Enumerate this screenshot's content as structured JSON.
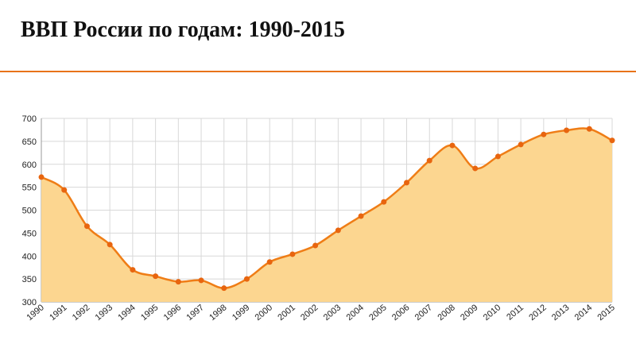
{
  "chart_data": {
    "type": "area",
    "title": "ВВП России по годам: 1990-2015",
    "categories": [
      "1990",
      "1991",
      "1992",
      "1993",
      "1994",
      "1995",
      "1996",
      "1997",
      "1998",
      "1999",
      "2000",
      "2001",
      "2002",
      "2003",
      "2004",
      "2005",
      "2006",
      "2007",
      "2008",
      "2009",
      "2010",
      "2011",
      "2012",
      "2013",
      "2014",
      "2015"
    ],
    "values": [
      572,
      544,
      465,
      425,
      370,
      356,
      344,
      347,
      330,
      350,
      387,
      404,
      423,
      456,
      487,
      518,
      560,
      608,
      641,
      591,
      617,
      643,
      665,
      674,
      677,
      652
    ],
    "color": "#ef7d16",
    "fill": "#fcd690",
    "ylim": [
      300,
      700
    ],
    "yticks": [
      300,
      350,
      400,
      450,
      500,
      550,
      600,
      650,
      700
    ],
    "grid": true
  }
}
